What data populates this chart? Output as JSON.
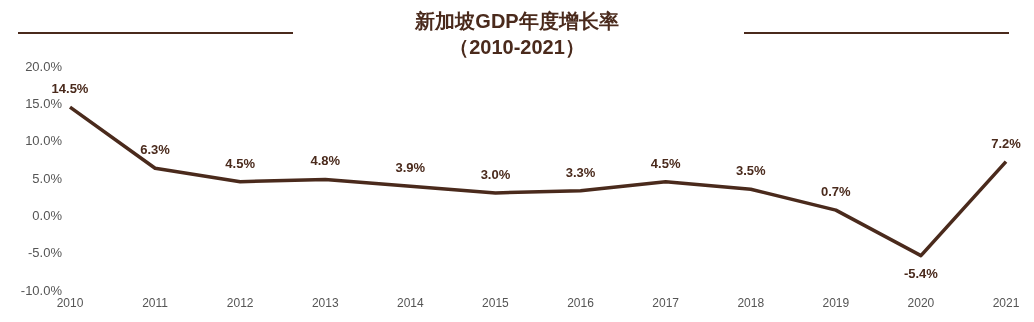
{
  "chart_data": {
    "type": "line",
    "title": "新加坡GDP年度增长率",
    "subtitle": "（2010-2021）",
    "categories": [
      "2010",
      "2011",
      "2012",
      "2013",
      "2014",
      "2015",
      "2016",
      "2017",
      "2018",
      "2019",
      "2020",
      "2021"
    ],
    "series": [
      {
        "color": "#4a2a1c",
        "values": [
          14.5,
          6.3,
          4.5,
          4.8,
          3.9,
          3.0,
          3.3,
          4.5,
          3.5,
          0.7,
          -5.4,
          7.2
        ],
        "value_labels": [
          "14.5%",
          "6.3%",
          "4.5%",
          "4.8%",
          "3.9%",
          "3.0%",
          "3.3%",
          "4.5%",
          "3.5%",
          "0.7%",
          "-5.4%",
          "7.2%"
        ]
      }
    ],
    "ylim": [
      -10,
      20
    ],
    "yticks": [
      {
        "value": 20,
        "label": "20.0%"
      },
      {
        "value": 15,
        "label": "15.0%"
      },
      {
        "value": 10,
        "label": "10.0%"
      },
      {
        "value": 5,
        "label": "5.0%"
      },
      {
        "value": 0,
        "label": "0.0%"
      },
      {
        "value": -5,
        "label": "-5.0%"
      },
      {
        "value": -10,
        "label": "-10.0%"
      }
    ],
    "grid": false,
    "legend": false,
    "marker": "none",
    "line_style": "solid"
  }
}
